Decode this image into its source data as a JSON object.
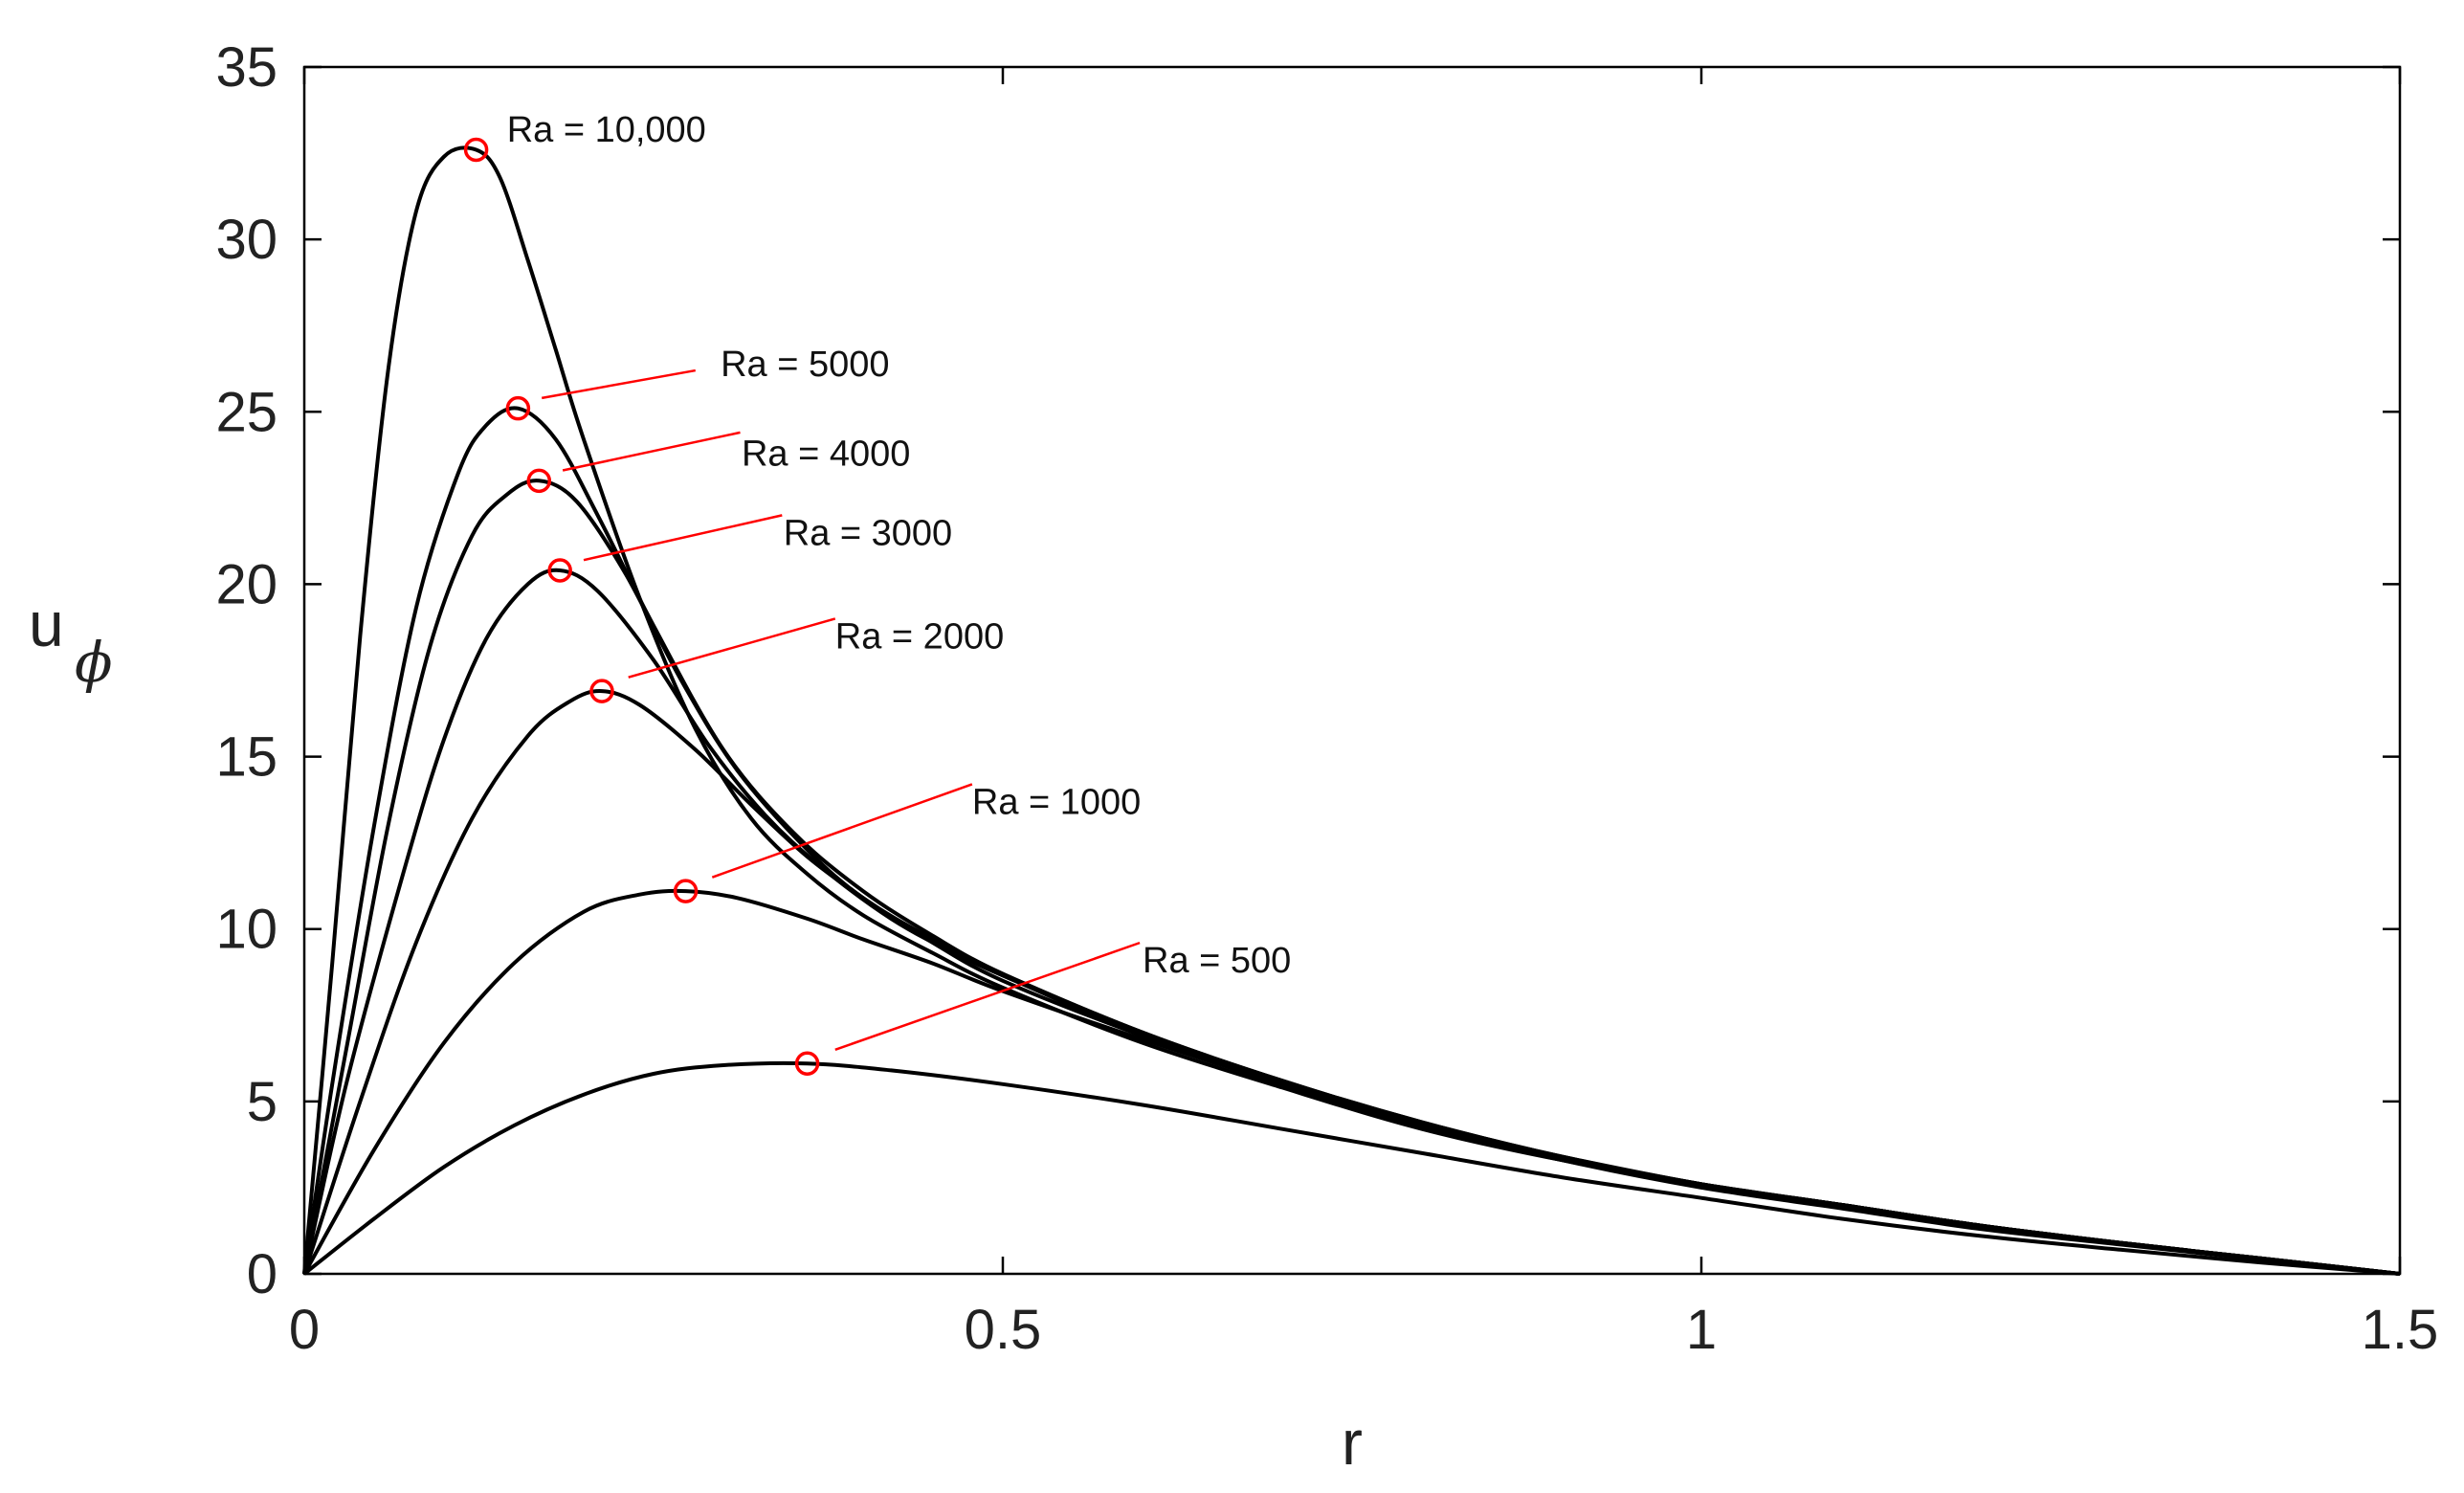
{
  "chart_data": {
    "type": "line",
    "title": "",
    "xlabel": "r",
    "ylabel": "u",
    "ylabel_subscript": "ϕ",
    "xlim": [
      0,
      1.5
    ],
    "ylim": [
      0,
      35
    ],
    "xticks": [
      0,
      0.5,
      1,
      1.5
    ],
    "xtick_labels": [
      "0",
      "0.5",
      "1",
      "1.5"
    ],
    "yticks": [
      0,
      5,
      10,
      15,
      20,
      25,
      30,
      35
    ],
    "ytick_labels": [
      "0",
      "5",
      "10",
      "15",
      "20",
      "25",
      "30",
      "35"
    ],
    "grid": false,
    "legend": "none",
    "line_color": "#000000",
    "marker_color": "#ff0000",
    "series": [
      {
        "name": "Ra = 10,000",
        "label": "Ra = 10,000",
        "peak": {
          "r": 0.123,
          "u": 32.6
        },
        "x": [
          0,
          0.02,
          0.04,
          0.06,
          0.08,
          0.1,
          0.123,
          0.14,
          0.16,
          0.18,
          0.2,
          0.24,
          0.28,
          0.32,
          0.36,
          0.4,
          0.45,
          0.5,
          0.6,
          0.7,
          0.8,
          0.9,
          1.0,
          1.1,
          1.2,
          1.3,
          1.4,
          1.5
        ],
        "y": [
          0,
          9,
          18.5,
          26.2,
          30.8,
          32.4,
          32.6,
          31.8,
          29.4,
          26.8,
          24.2,
          19.6,
          15.8,
          13.2,
          11.6,
          10.4,
          9.3,
          8.3,
          6.7,
          5.4,
          4.2,
          3.3,
          2.6,
          2.0,
          1.4,
          0.9,
          0.45,
          0
        ]
      },
      {
        "name": "Ra = 5000",
        "label": "Ra = 5000",
        "peak": {
          "r": 0.153,
          "u": 25.1
        },
        "x": [
          0,
          0.02,
          0.05,
          0.08,
          0.11,
          0.13,
          0.153,
          0.18,
          0.21,
          0.25,
          0.3,
          0.35,
          0.4,
          0.45,
          0.5,
          0.6,
          0.7,
          0.8,
          0.9,
          1.0,
          1.1,
          1.2,
          1.3,
          1.4,
          1.5
        ],
        "y": [
          0,
          5.5,
          13,
          19.3,
          23.2,
          24.6,
          25.1,
          24.2,
          22.0,
          18.8,
          15.2,
          12.8,
          11.1,
          9.8,
          8.7,
          7.0,
          5.6,
          4.4,
          3.4,
          2.6,
          2.0,
          1.4,
          0.9,
          0.45,
          0
        ]
      },
      {
        "name": "Ra = 4000",
        "label": "Ra = 4000",
        "peak": {
          "r": 0.168,
          "u": 23.0
        },
        "x": [
          0,
          0.03,
          0.06,
          0.09,
          0.12,
          0.145,
          0.168,
          0.195,
          0.23,
          0.27,
          0.31,
          0.36,
          0.4,
          0.45,
          0.5,
          0.6,
          0.7,
          0.8,
          0.9,
          1.0,
          1.1,
          1.2,
          1.3,
          1.4,
          1.5
        ],
        "y": [
          0,
          6.5,
          13,
          18.2,
          21.4,
          22.6,
          23.0,
          22.4,
          20.3,
          17.2,
          14.6,
          12.3,
          10.9,
          9.7,
          8.7,
          7.0,
          5.6,
          4.4,
          3.4,
          2.6,
          2.0,
          1.4,
          0.9,
          0.45,
          0
        ]
      },
      {
        "name": "Ra = 3000",
        "label": "Ra = 3000",
        "peak": {
          "r": 0.183,
          "u": 20.4
        },
        "x": [
          0,
          0.03,
          0.07,
          0.1,
          0.13,
          0.16,
          0.183,
          0.21,
          0.25,
          0.29,
          0.33,
          0.37,
          0.42,
          0.47,
          0.52,
          0.6,
          0.7,
          0.8,
          0.9,
          1.0,
          1.1,
          1.2,
          1.3,
          1.4,
          1.5
        ],
        "y": [
          0,
          5.5,
          11.5,
          15.5,
          18.4,
          20.0,
          20.4,
          19.8,
          17.8,
          15.3,
          13.3,
          11.8,
          10.3,
          9.2,
          8.3,
          6.9,
          5.5,
          4.3,
          3.4,
          2.6,
          2.0,
          1.4,
          0.9,
          0.45,
          0
        ]
      },
      {
        "name": "Ra = 2000",
        "label": "Ra = 2000",
        "peak": {
          "r": 0.213,
          "u": 16.9
        },
        "x": [
          0,
          0.04,
          0.08,
          0.12,
          0.16,
          0.19,
          0.213,
          0.24,
          0.28,
          0.32,
          0.36,
          0.4,
          0.45,
          0.5,
          0.6,
          0.7,
          0.8,
          0.9,
          1.0,
          1.1,
          1.2,
          1.3,
          1.4,
          1.5
        ],
        "y": [
          0,
          5.0,
          9.6,
          13.2,
          15.6,
          16.6,
          16.9,
          16.5,
          15.2,
          13.6,
          12.1,
          10.9,
          9.6,
          8.5,
          6.9,
          5.5,
          4.3,
          3.3,
          2.6,
          2.0,
          1.4,
          0.9,
          0.45,
          0
        ]
      },
      {
        "name": "Ra = 1000",
        "label": "Ra = 1000",
        "peak": {
          "r": 0.273,
          "u": 11.1
        },
        "x": [
          0,
          0.05,
          0.1,
          0.15,
          0.2,
          0.24,
          0.273,
          0.31,
          0.36,
          0.4,
          0.45,
          0.5,
          0.6,
          0.7,
          0.8,
          0.9,
          1.0,
          1.1,
          1.2,
          1.3,
          1.4,
          1.5
        ],
        "y": [
          0,
          3.6,
          6.7,
          9.0,
          10.5,
          11.0,
          11.1,
          10.9,
          10.3,
          9.7,
          9.0,
          8.2,
          6.8,
          5.5,
          4.3,
          3.3,
          2.5,
          1.9,
          1.3,
          0.85,
          0.42,
          0
        ]
      },
      {
        "name": "Ra = 500",
        "label": "Ra = 500",
        "peak": {
          "r": 0.36,
          "u": 6.1
        },
        "x": [
          0,
          0.05,
          0.1,
          0.15,
          0.2,
          0.25,
          0.3,
          0.36,
          0.42,
          0.5,
          0.6,
          0.7,
          0.8,
          0.9,
          1.0,
          1.1,
          1.2,
          1.3,
          1.4,
          1.5
        ],
        "y": [
          0,
          1.6,
          3.1,
          4.3,
          5.2,
          5.8,
          6.05,
          6.1,
          5.9,
          5.5,
          4.9,
          4.2,
          3.5,
          2.8,
          2.2,
          1.6,
          1.1,
          0.7,
          0.33,
          0
        ]
      }
    ]
  }
}
